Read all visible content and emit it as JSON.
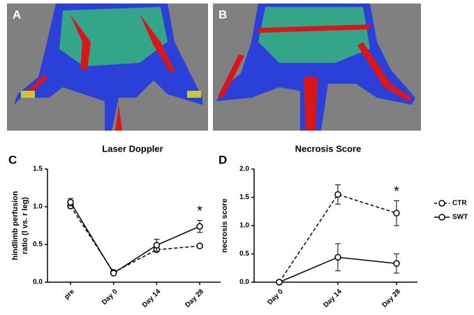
{
  "panel_labels": [
    "A",
    "B"
  ],
  "chart_data": [
    {
      "type": "line",
      "panel": "C",
      "title": "Laser Doppler",
      "ylabel": [
        "hindlimb perfusion",
        "ratio (l vs. r leg)"
      ],
      "categories": [
        "pre",
        "Day 0",
        "Day 14",
        "Day 28"
      ],
      "ylim": [
        0,
        1.5
      ],
      "yticks": [
        {
          "value": 0,
          "label": "0.0"
        },
        {
          "value": 0.5,
          "label": "0.5"
        },
        {
          "value": 1,
          "label": "1.0"
        },
        {
          "value": 1.5,
          "label": "1.5"
        }
      ],
      "series": [
        {
          "dashed": true,
          "color": "#000000",
          "values": [
            1.01,
            0.13,
            0.43,
            0.48
          ],
          "errors": [
            0.03,
            0.01,
            0.02,
            0.02
          ]
        },
        {
          "dashed": false,
          "color": "#000000",
          "values": [
            1.06,
            0.12,
            0.49,
            0.74
          ],
          "errors": [
            0.05,
            0.01,
            0.08,
            0.08
          ]
        }
      ],
      "annotation": "*"
    },
    {
      "type": "line",
      "panel": "D",
      "title": "Necrosis Score",
      "ylabel": [
        "necrosis score"
      ],
      "categories": [
        "Day 0",
        "Day 14",
        "Day 28"
      ],
      "ylim": [
        0,
        2
      ],
      "yticks": [
        {
          "value": 0,
          "label": "0.0"
        },
        {
          "value": 0.5,
          "label": "0.5"
        },
        {
          "value": 1,
          "label": "1.0"
        },
        {
          "value": 1.5,
          "label": "1.5"
        },
        {
          "value": 2,
          "label": "2.0"
        }
      ],
      "series": [
        {
          "name": "CTR",
          "dashed": true,
          "color": "#000000",
          "values": [
            0,
            1.55,
            1.22
          ],
          "errors": [
            0,
            0.17,
            0.22
          ]
        },
        {
          "name": "SWT",
          "dashed": false,
          "color": "#000000",
          "values": [
            0,
            0.44,
            0.33
          ],
          "errors": [
            0,
            0.24,
            0.17
          ]
        }
      ],
      "annotation": "*",
      "legend": "right"
    }
  ]
}
